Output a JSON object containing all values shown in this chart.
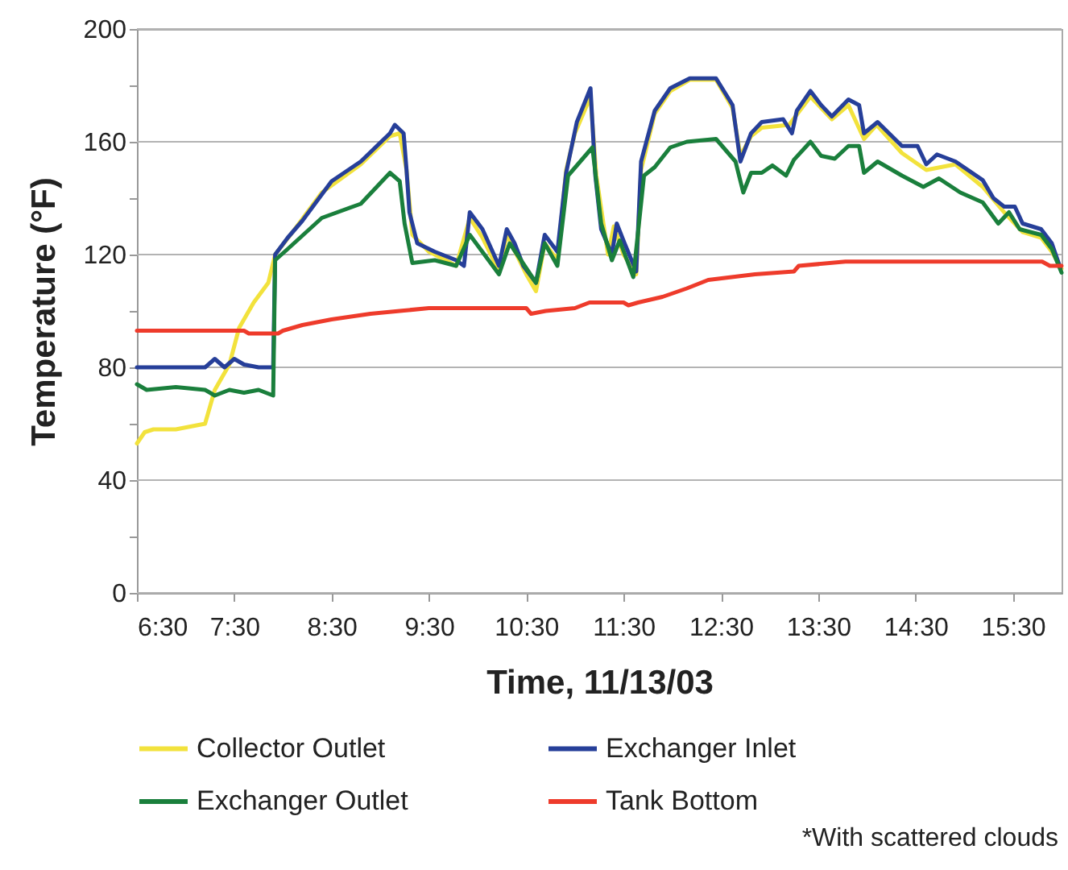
{
  "chart_data": {
    "type": "line",
    "xlabel": "Time, 11/13/03",
    "ylabel": "Temperature (°F)",
    "xlim": [
      6.5,
      16.0
    ],
    "ylim": [
      0,
      200
    ],
    "xticks": [
      {
        "value": 6.5,
        "label": "6:30"
      },
      {
        "value": 7.5,
        "label": "7:30"
      },
      {
        "value": 8.5,
        "label": "8:30"
      },
      {
        "value": 9.5,
        "label": "9:30"
      },
      {
        "value": 10.5,
        "label": "10:30"
      },
      {
        "value": 11.5,
        "label": "11:30"
      },
      {
        "value": 12.5,
        "label": "12:30"
      },
      {
        "value": 13.5,
        "label": "13:30"
      },
      {
        "value": 14.5,
        "label": "14:30"
      },
      {
        "value": 15.5,
        "label": "15:30"
      }
    ],
    "yticks": [
      0,
      {
        "value": 20,
        "label": null
      },
      40,
      {
        "value": 60,
        "label": null
      },
      80,
      {
        "value": 100,
        "label": null
      },
      120,
      {
        "value": 140,
        "label": null
      },
      160,
      {
        "value": 180,
        "label": null
      },
      200
    ],
    "grid": "y",
    "legend": "bottom",
    "line_style": "solid",
    "marker": "none",
    "annotations": [
      "*With scattered clouds"
    ],
    "series": [
      {
        "name": "Collector Outlet",
        "color": "#f2e23c",
        "x": [
          6.5,
          6.58,
          6.67,
          6.9,
          7.2,
          7.3,
          7.45,
          7.55,
          7.7,
          7.85,
          7.92,
          8.1,
          8.4,
          8.8,
          9.1,
          9.2,
          9.27,
          9.33,
          9.5,
          9.56,
          9.78,
          9.92,
          10.05,
          10.22,
          10.3,
          10.5,
          10.6,
          10.69,
          10.82,
          10.91,
          11.0,
          11.16,
          11.22,
          11.34,
          11.4,
          11.5,
          11.63,
          11.68,
          11.82,
          11.98,
          12.18,
          12.45,
          12.62,
          12.7,
          12.81,
          12.92,
          13.2,
          13.42,
          13.64,
          13.81,
          13.97,
          14.1,
          14.36,
          14.61,
          14.91,
          15.19,
          15.41,
          15.6,
          15.79,
          15.9,
          16.0
        ],
        "values": [
          53,
          57,
          58,
          58,
          60,
          72,
          81,
          94,
          103,
          110,
          120,
          128,
          142,
          152,
          162,
          163,
          150,
          127,
          121,
          120,
          116,
          133,
          126,
          114,
          127,
          113,
          107,
          124,
          118,
          150,
          163,
          176,
          148,
          120,
          130,
          120,
          113,
          150,
          170,
          178,
          182,
          182,
          172,
          155,
          162,
          165,
          166,
          176,
          168,
          173,
          161,
          166,
          156,
          150,
          152,
          144,
          135,
          128,
          126,
          121,
          115
        ]
      },
      {
        "name": "Exchanger Inlet",
        "color": "#263f99",
        "x": [
          6.5,
          7.2,
          7.3,
          7.4,
          7.5,
          7.6,
          7.75,
          7.9,
          7.92,
          8.05,
          8.2,
          8.5,
          8.8,
          9.1,
          9.15,
          9.24,
          9.27,
          9.3,
          9.38,
          9.56,
          9.78,
          9.86,
          9.92,
          10.05,
          10.22,
          10.3,
          10.38,
          10.47,
          10.6,
          10.69,
          10.82,
          10.91,
          11.02,
          11.16,
          11.21,
          11.27,
          11.38,
          11.43,
          11.51,
          11.63,
          11.68,
          11.82,
          11.98,
          12.18,
          12.45,
          12.62,
          12.7,
          12.81,
          12.92,
          13.14,
          13.23,
          13.28,
          13.42,
          13.53,
          13.64,
          13.81,
          13.92,
          13.97,
          14.11,
          14.36,
          14.52,
          14.61,
          14.72,
          14.91,
          15.19,
          15.3,
          15.41,
          15.52,
          15.6,
          15.79,
          15.9,
          15.99
        ],
        "values": [
          80,
          80,
          83,
          80,
          83,
          81,
          80,
          80,
          120,
          126,
          132,
          146,
          153,
          163,
          166,
          163,
          150,
          135,
          124,
          121,
          118,
          116,
          135,
          129,
          116,
          129,
          124,
          116,
          110,
          127,
          121,
          149,
          167,
          179,
          148,
          129,
          120,
          131,
          124,
          114,
          153,
          171,
          179,
          182.5,
          182.5,
          173,
          153,
          163,
          167,
          168,
          163,
          171,
          178,
          173,
          169,
          175,
          173,
          163,
          167,
          158.5,
          158.5,
          152,
          155.5,
          153,
          146.4,
          140,
          137,
          137,
          131,
          129,
          124,
          115
        ]
      },
      {
        "name": "Exchanger Outlet",
        "color": "#1a7f3c",
        "x": [
          6.5,
          6.6,
          6.9,
          7.2,
          7.3,
          7.45,
          7.6,
          7.75,
          7.9,
          7.92,
          8.05,
          8.4,
          8.8,
          9.1,
          9.2,
          9.25,
          9.33,
          9.56,
          9.78,
          9.92,
          10.22,
          10.33,
          10.6,
          10.69,
          10.82,
          10.93,
          11.18,
          11.27,
          11.38,
          11.46,
          11.6,
          11.71,
          11.82,
          11.98,
          12.15,
          12.45,
          12.65,
          12.73,
          12.81,
          12.92,
          13.03,
          13.17,
          13.25,
          13.42,
          13.53,
          13.67,
          13.81,
          13.92,
          13.97,
          14.11,
          14.36,
          14.58,
          14.74,
          14.96,
          15.19,
          15.35,
          15.46,
          15.57,
          15.79,
          15.9,
          16.0
        ],
        "values": [
          74,
          72,
          73,
          72,
          70,
          72,
          71,
          72,
          70,
          118,
          122,
          133,
          138,
          149,
          146,
          131,
          117,
          118,
          116,
          127,
          113,
          124,
          110,
          124,
          116,
          148,
          158,
          131,
          118,
          125,
          112,
          148,
          151,
          158,
          160,
          161,
          153,
          142,
          149,
          149,
          151.6,
          148,
          153.6,
          160,
          155,
          154,
          158.5,
          158.5,
          149,
          153,
          148,
          144,
          147,
          142,
          138.5,
          131,
          135,
          129,
          127,
          122,
          113.6
        ]
      },
      {
        "name": "Tank Bottom",
        "color": "#ee3b2b",
        "x": [
          6.5,
          7.6,
          7.65,
          7.95,
          8.0,
          8.2,
          8.5,
          8.9,
          9.2,
          9.5,
          10.5,
          10.55,
          10.7,
          11.0,
          11.15,
          11.5,
          11.55,
          11.65,
          11.9,
          12.15,
          12.37,
          12.85,
          13.25,
          13.3,
          13.78,
          15.8,
          15.88,
          16.0
        ],
        "values": [
          93,
          93,
          92,
          92,
          93,
          95,
          97,
          99,
          100,
          101,
          101,
          99,
          100,
          101,
          103,
          103,
          102,
          103,
          105,
          108,
          111,
          113,
          114,
          116,
          117.5,
          117.5,
          116,
          116
        ]
      }
    ]
  }
}
